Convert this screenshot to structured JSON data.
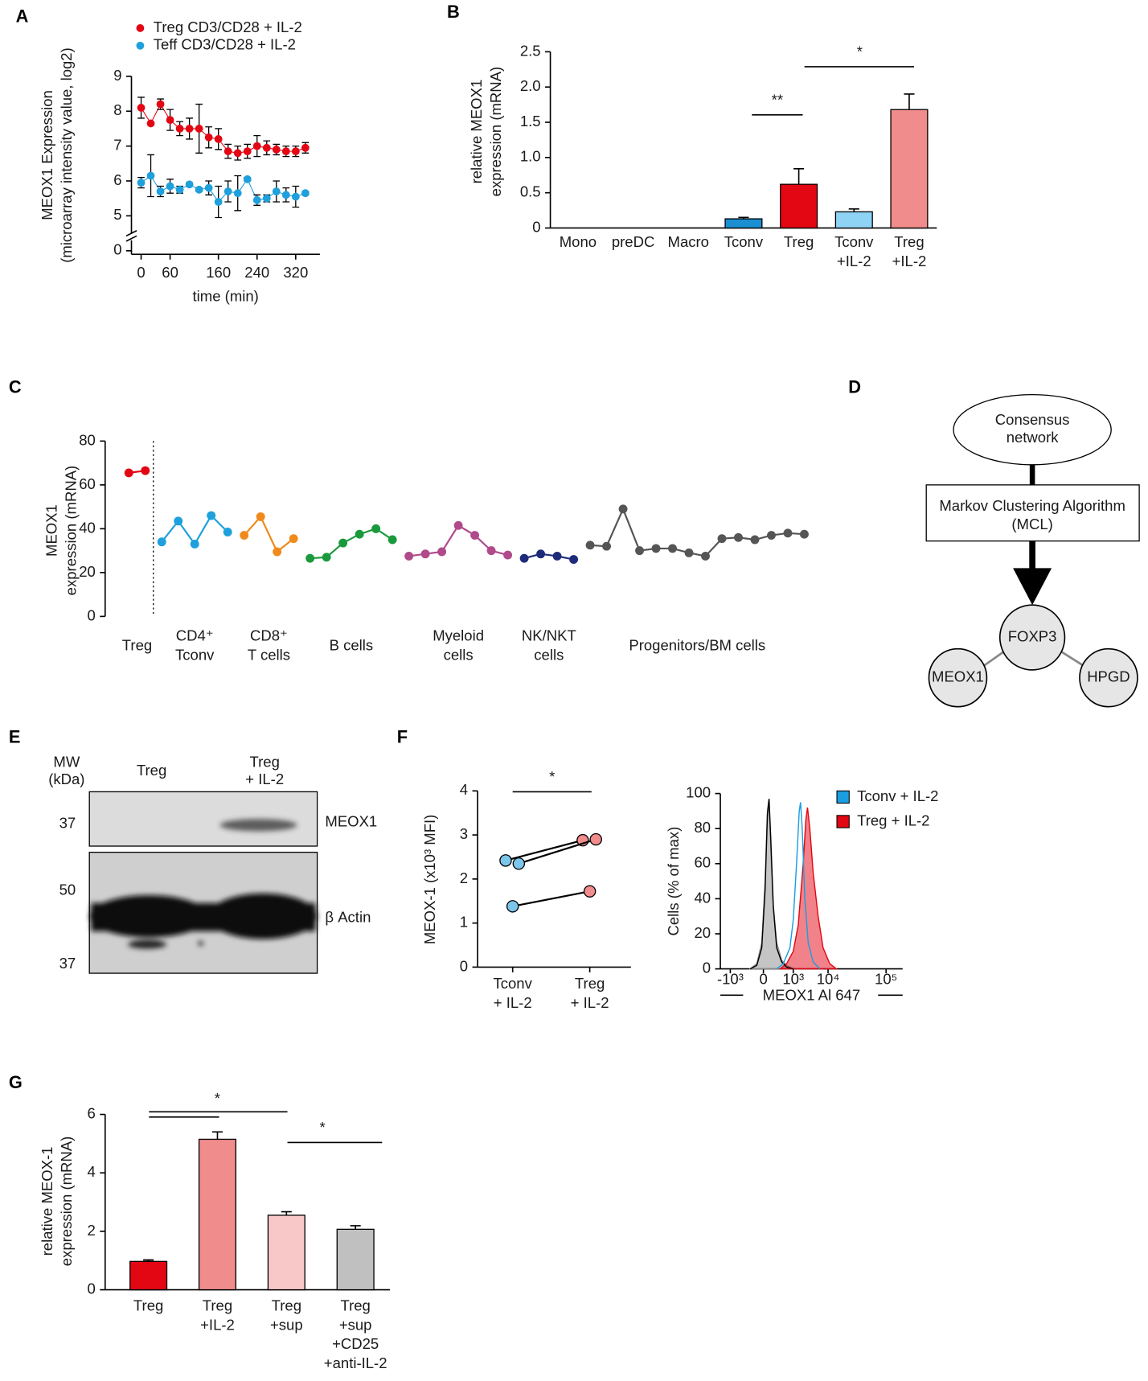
{
  "chart_data": [
    {
      "type": "line",
      "panel": "A",
      "ylabel": [
        "MEOX1 Expression",
        "(microarray intensity value, log2)"
      ],
      "xlabel": "time (min)",
      "x": [
        0,
        20,
        40,
        60,
        80,
        100,
        120,
        140,
        160,
        180,
        200,
        220,
        240,
        260,
        280,
        300,
        320,
        340
      ],
      "xlim": [
        -20,
        370
      ],
      "xticks": [
        0,
        60,
        160,
        240,
        320
      ],
      "ylim": [
        4.5,
        9
      ],
      "yticks": [
        0,
        5,
        6,
        7,
        8,
        9
      ],
      "axis_break": true,
      "series": [
        {
          "name": "Treg CD3/CD28 + IL-2",
          "color": "#e30613",
          "values": [
            8.1,
            7.65,
            8.2,
            7.75,
            7.5,
            7.5,
            7.5,
            7.25,
            7.2,
            6.85,
            6.8,
            6.85,
            7.0,
            6.95,
            6.9,
            6.85,
            6.85,
            6.95
          ],
          "errors": [
            0.3,
            0,
            0.15,
            0.3,
            0.2,
            0.3,
            0.7,
            0.3,
            0.3,
            0.2,
            0.2,
            0.2,
            0.3,
            0.2,
            0.15,
            0.15,
            0.15,
            0.15
          ]
        },
        {
          "name": "Teff CD3/CD28 + IL-2",
          "color": "#1ea0dc",
          "values": [
            5.95,
            6.15,
            5.7,
            5.85,
            5.75,
            5.9,
            5.75,
            5.8,
            5.4,
            5.7,
            5.65,
            6.05,
            5.45,
            5.5,
            5.7,
            5.6,
            5.55,
            5.65
          ],
          "errors": [
            0.15,
            0.6,
            0.15,
            0.2,
            0.1,
            0.05,
            0.05,
            0.2,
            0.45,
            0.3,
            0.5,
            0.05,
            0.15,
            0.1,
            0.3,
            0.2,
            0.3,
            0.05
          ]
        }
      ]
    },
    {
      "type": "bar",
      "panel": "B",
      "ylabel": [
        "relative MEOX1",
        "expression (mRNA)"
      ],
      "categories": [
        [
          "Mono"
        ],
        [
          "preDC"
        ],
        [
          "Macro"
        ],
        [
          "Tconv"
        ],
        [
          "Treg"
        ],
        [
          "Tconv",
          "+IL-2"
        ],
        [
          "Treg",
          "+IL-2"
        ]
      ],
      "values": [
        0,
        0,
        0,
        0.13,
        0.62,
        0.23,
        1.68
      ],
      "errors": [
        0,
        0,
        0,
        0.02,
        0.22,
        0.04,
        0.22
      ],
      "colors": [
        "#888888",
        "#888888",
        "#888888",
        "#1b8fd2",
        "#e30613",
        "#8fd3f4",
        "#f08c8c"
      ],
      "ylim": [
        0,
        2.5
      ],
      "yticks": [
        0,
        0.5,
        {
          "value": 1,
          "label": "1.0"
        },
        1.5,
        {
          "value": 2,
          "label": "2.0"
        },
        2.5
      ],
      "annotations": [
        "**",
        "*"
      ]
    },
    {
      "type": "line",
      "panel": "C",
      "ylabel": [
        "MEOX1",
        "expression (mRNA)"
      ],
      "ylim": [
        0,
        80
      ],
      "yticks": [
        0,
        20,
        40,
        60,
        80
      ],
      "series": [
        {
          "name": "Treg",
          "color": "#e30613",
          "values": [
            65.5,
            66.5
          ]
        },
        {
          "name": [
            "CD4⁺",
            "Tconv"
          ],
          "color": "#1ea0dc",
          "values": [
            34,
            43.5,
            33,
            46,
            38.5
          ]
        },
        {
          "name": [
            "CD8⁺",
            "T cells"
          ],
          "color": "#f08a1c",
          "values": [
            37,
            45.5,
            29.5,
            35.5
          ]
        },
        {
          "name": "B cells",
          "color": "#1a9a3c",
          "values": [
            26.5,
            27,
            33.5,
            37.5,
            40,
            35
          ]
        },
        {
          "name": [
            "Myeloid",
            "cells"
          ],
          "color": "#b04a8a",
          "values": [
            27.5,
            28.5,
            29.5,
            41.5,
            37,
            30,
            28
          ]
        },
        {
          "name": [
            "NK/NKT",
            "cells"
          ],
          "color": "#1e2a7a",
          "values": [
            26.5,
            28.5,
            27.5,
            26
          ]
        },
        {
          "name": "Progenitors/BM cells",
          "color": "#555555",
          "values": [
            32.5,
            32,
            49,
            30,
            31,
            31,
            29,
            27.5,
            35.5,
            36,
            35,
            37,
            38,
            37.5
          ]
        }
      ]
    },
    {
      "type": "paired",
      "panel": "F",
      "ylabel": "MEOX-1 (x10³ MFI)",
      "categories": [
        [
          "Tconv",
          "+ IL-2"
        ],
        [
          "Treg",
          "+ IL-2"
        ]
      ],
      "colors": [
        "#7cc6ec",
        "#f08c8c"
      ],
      "series": [
        {
          "values": [
            2.42,
            2.88
          ]
        },
        {
          "values": [
            2.35,
            2.9
          ]
        },
        {
          "values": [
            1.38,
            1.72
          ]
        }
      ],
      "ylim": [
        0,
        4
      ],
      "yticks": [
        0,
        1,
        2,
        3,
        4
      ],
      "annotations": [
        "*"
      ]
    },
    {
      "type": "area",
      "ylabel": "Cells (% of max)",
      "xlabel": "MEOX1 Al 647",
      "xlim": [
        0,
        5.5
      ],
      "xticks": [
        {
          "value": 0.3,
          "label": "-10³"
        },
        {
          "value": 1.3,
          "label": "0"
        },
        {
          "value": 2.2,
          "label": "10³"
        },
        {
          "value": 3.25,
          "label": "10⁴"
        },
        {
          "value": 5.0,
          "label": "10⁵"
        }
      ],
      "ylim": [
        0,
        100
      ],
      "yticks": [
        0,
        20,
        40,
        60,
        80,
        100
      ],
      "series": [
        {
          "color": "#8c8c8c",
          "filled": true,
          "x": [
            0.9,
            1.1,
            1.25,
            1.35,
            1.42,
            1.46,
            1.5,
            1.58,
            1.7,
            1.85,
            2.0,
            2.2
          ],
          "values": [
            0,
            3,
            15,
            50,
            90,
            96,
            80,
            40,
            15,
            5,
            2,
            0
          ]
        },
        {
          "color": "#000000",
          "filled": false,
          "x": [
            0.9,
            1.1,
            1.25,
            1.35,
            1.42,
            1.47,
            1.52,
            1.6,
            1.7,
            1.85,
            2.0,
            2.2
          ],
          "values": [
            0,
            2,
            12,
            45,
            88,
            97,
            75,
            35,
            12,
            4,
            1,
            0
          ]
        },
        {
          "name": "Tconv + IL-2",
          "color": "#1a9ee0",
          "filled": false,
          "x": [
            1.7,
            1.9,
            2.1,
            2.2,
            2.3,
            2.38,
            2.42,
            2.47,
            2.55,
            2.65,
            2.8,
            3.0
          ],
          "values": [
            0,
            3,
            12,
            28,
            60,
            90,
            95,
            80,
            40,
            15,
            4,
            0
          ]
        },
        {
          "name": "Treg + IL-2",
          "color": "#e30613",
          "filled": true,
          "x": [
            1.8,
            2.0,
            2.2,
            2.35,
            2.5,
            2.58,
            2.63,
            2.7,
            2.8,
            2.95,
            3.1,
            3.3,
            3.5
          ],
          "values": [
            0,
            3,
            10,
            25,
            60,
            85,
            92,
            80,
            55,
            30,
            12,
            3,
            0
          ]
        }
      ]
    },
    {
      "type": "bar",
      "panel": "G",
      "ylabel": [
        "relative MEOX-1",
        "expression (mRNA)"
      ],
      "categories": [
        [
          "Treg"
        ],
        [
          "Treg",
          "+IL-2"
        ],
        [
          "Treg",
          "+sup"
        ],
        [
          "Treg",
          "+sup",
          "+CD25",
          "+anti-IL-2"
        ]
      ],
      "values": [
        0.97,
        5.15,
        2.55,
        2.07
      ],
      "errors": [
        0.05,
        0.25,
        0.12,
        0.12
      ],
      "colors": [
        "#e30613",
        "#f08c8c",
        "#f8c8c8",
        "#c0c0c0"
      ],
      "ylim": [
        0,
        6
      ],
      "yticks": [
        0,
        2,
        4,
        6
      ],
      "annotations": [
        "*",
        "*"
      ]
    }
  ],
  "diagram": {
    "panel": "D",
    "source": [
      "Consensus",
      "network"
    ],
    "step": [
      "Markov Clustering Algorithm",
      "(MCL)"
    ],
    "nodes": [
      "FOXP3",
      "MEOX1",
      "HPGD"
    ]
  },
  "blot": {
    "panel": "E",
    "mw_header": [
      "MW",
      "(kDa)"
    ],
    "lanes": [
      [
        "Treg"
      ],
      [
        "Treg",
        "+ IL-2"
      ]
    ],
    "mw_markers": [
      37,
      50,
      37
    ],
    "bands": [
      "MEOX1",
      "β Actin"
    ]
  }
}
